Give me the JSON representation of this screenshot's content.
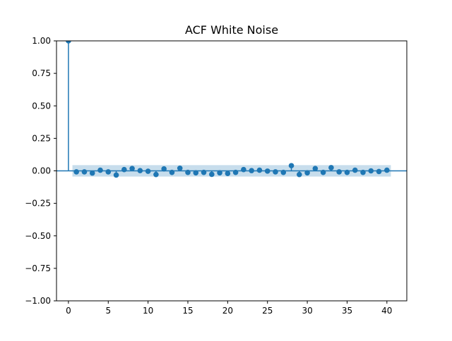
{
  "chart_data": {
    "type": "scatter",
    "subtype": "stem",
    "title": "ACF White Noise",
    "xlabel": "",
    "ylabel": "",
    "xlim": [
      -1.5,
      42.5
    ],
    "ylim": [
      -1.0,
      1.0
    ],
    "xticks": [
      "0",
      "5",
      "10",
      "15",
      "20",
      "25",
      "30",
      "35",
      "40"
    ],
    "yticks": [
      "1.00",
      "0.75",
      "0.50",
      "0.25",
      "0.00",
      "−0.25",
      "−0.50",
      "−0.75",
      "−1.00"
    ],
    "grid": false,
    "legend": "none",
    "confidence_band": {
      "x_range": [
        0.5,
        40.5
      ],
      "lower": -0.044,
      "upper": 0.044
    },
    "series": [
      {
        "x": [
          0,
          1,
          2,
          3,
          4,
          5,
          6,
          7,
          8,
          9,
          10,
          11,
          12,
          13,
          14,
          15,
          16,
          17,
          18,
          19,
          20,
          21,
          22,
          23,
          24,
          25,
          26,
          27,
          28,
          29,
          30,
          31,
          32,
          33,
          34,
          35,
          36,
          37,
          38,
          39,
          40
        ],
        "values": [
          1.0,
          -0.008,
          -0.008,
          -0.017,
          0.005,
          -0.008,
          -0.032,
          0.01,
          0.018,
          0.002,
          -0.003,
          -0.028,
          0.015,
          -0.012,
          0.02,
          -0.012,
          -0.015,
          -0.012,
          -0.027,
          -0.015,
          -0.02,
          -0.012,
          0.01,
          0.002,
          0.005,
          -0.002,
          -0.008,
          -0.012,
          0.04,
          -0.028,
          -0.015,
          0.018,
          -0.012,
          0.025,
          -0.008,
          -0.012,
          0.005,
          -0.012,
          0.0,
          -0.005,
          0.005
        ]
      }
    ],
    "colors": {
      "marker": "#1f77b4",
      "band": "#1f77b4",
      "axis": "#000000"
    }
  }
}
